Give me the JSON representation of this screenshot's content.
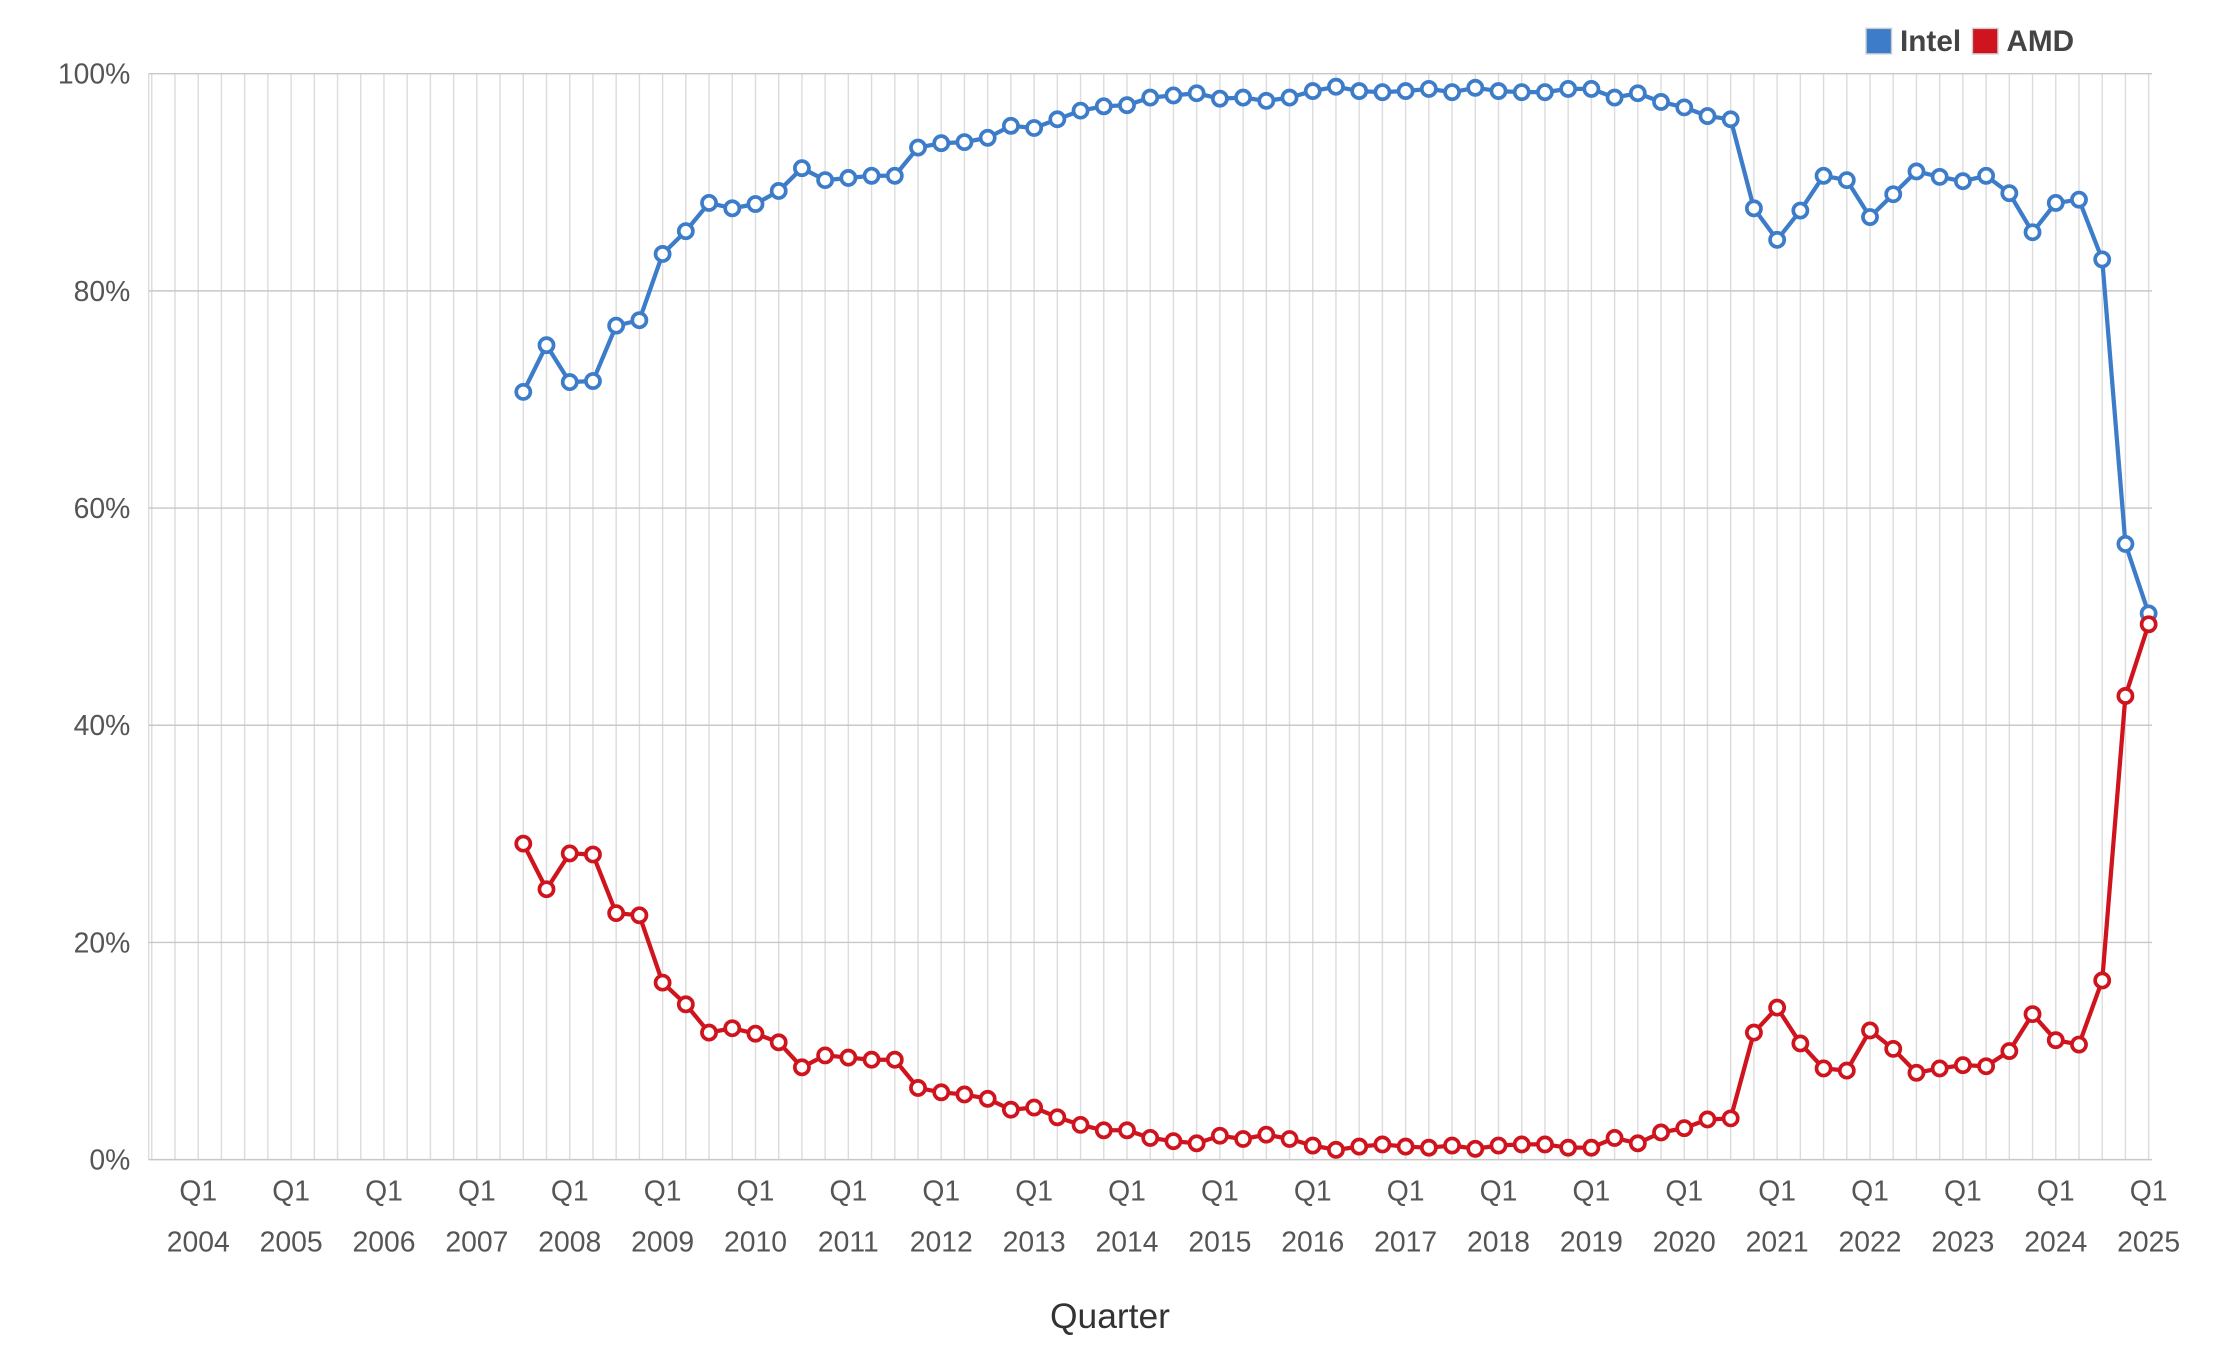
{
  "chart_data": {
    "type": "line",
    "x_label": "Quarter",
    "categories": [
      [
        "Q1",
        "2004"
      ],
      null,
      null,
      null,
      [
        "Q1",
        "2005"
      ],
      null,
      null,
      null,
      [
        "Q1",
        "2006"
      ],
      null,
      null,
      null,
      [
        "Q1",
        "2007"
      ],
      null,
      null,
      null,
      [
        "Q1",
        "2008"
      ],
      null,
      null,
      null,
      [
        "Q1",
        "2009"
      ],
      null,
      null,
      null,
      [
        "Q1",
        "2010"
      ],
      null,
      null,
      null,
      [
        "Q1",
        "2011"
      ],
      null,
      null,
      null,
      [
        "Q1",
        "2012"
      ],
      null,
      null,
      null,
      [
        "Q1",
        "2013"
      ],
      null,
      null,
      null,
      [
        "Q1",
        "2014"
      ],
      null,
      null,
      null,
      [
        "Q1",
        "2015"
      ],
      null,
      null,
      null,
      [
        "Q1",
        "2016"
      ],
      null,
      null,
      null,
      [
        "Q1",
        "2017"
      ],
      null,
      null,
      null,
      [
        "Q1",
        "2018"
      ],
      null,
      null,
      null,
      [
        "Q1",
        "2019"
      ],
      null,
      null,
      null,
      [
        "Q1",
        "2020"
      ],
      null,
      null,
      null,
      [
        "Q1",
        "2021"
      ],
      null,
      null,
      null,
      [
        "Q1",
        "2022"
      ],
      null,
      null,
      null,
      [
        "Q1",
        "2023"
      ],
      null,
      null,
      null,
      [
        "Q1",
        "2024"
      ],
      null,
      null,
      null,
      [
        "Q1",
        "2025"
      ]
    ],
    "series": [
      {
        "name": "Intel",
        "color": "#3d7cc9",
        "values": [
          null,
          null,
          null,
          null,
          null,
          null,
          null,
          null,
          null,
          null,
          null,
          null,
          null,
          null,
          70.7,
          75.0,
          71.6,
          71.7,
          76.8,
          77.3,
          83.4,
          85.5,
          88.1,
          87.6,
          88.0,
          89.2,
          91.3,
          90.2,
          90.4,
          90.6,
          90.6,
          93.2,
          93.6,
          93.7,
          94.1,
          95.2,
          95.0,
          95.8,
          96.6,
          97.0,
          97.1,
          97.8,
          98.0,
          98.2,
          97.7,
          97.8,
          97.5,
          97.8,
          98.4,
          98.8,
          98.4,
          98.3,
          98.4,
          98.6,
          98.3,
          98.7,
          98.4,
          98.3,
          98.3,
          98.6,
          98.6,
          97.8,
          98.2,
          97.4,
          96.9,
          96.1,
          95.8,
          87.6,
          84.7,
          87.4,
          90.6,
          90.2,
          86.8,
          88.9,
          91.0,
          90.5,
          90.1,
          90.6,
          89.0,
          85.4,
          88.1,
          88.4,
          82.9,
          56.7,
          50.3
        ]
      },
      {
        "name": "AMD",
        "color": "#d0141e",
        "values": [
          null,
          null,
          null,
          null,
          null,
          null,
          null,
          null,
          null,
          null,
          null,
          null,
          null,
          null,
          29.1,
          24.9,
          28.2,
          28.1,
          22.7,
          22.5,
          16.3,
          14.3,
          11.7,
          12.1,
          11.6,
          10.8,
          8.5,
          9.6,
          9.4,
          9.2,
          9.2,
          6.6,
          6.2,
          6.0,
          5.6,
          4.6,
          4.8,
          3.9,
          3.2,
          2.7,
          2.7,
          2.0,
          1.7,
          1.5,
          2.2,
          1.9,
          2.3,
          1.9,
          1.3,
          0.9,
          1.2,
          1.4,
          1.2,
          1.1,
          1.3,
          1.0,
          1.3,
          1.4,
          1.4,
          1.1,
          1.1,
          2.0,
          1.5,
          2.5,
          2.9,
          3.7,
          3.8,
          11.7,
          14.0,
          10.7,
          8.4,
          8.2,
          11.9,
          10.2,
          8.0,
          8.4,
          8.7,
          8.6,
          10.0,
          13.4,
          11.0,
          10.6,
          16.5,
          42.7,
          49.3
        ]
      }
    ],
    "ylim": [
      0,
      100
    ],
    "yticks": [
      {
        "value": 0,
        "label": "0%"
      },
      {
        "value": 20,
        "label": "20%"
      },
      {
        "value": 40,
        "label": "40%"
      },
      {
        "value": 60,
        "label": "60%"
      },
      {
        "value": 80,
        "label": "80%"
      },
      {
        "value": 100,
        "label": "100%"
      }
    ],
    "grid": true,
    "legend": "top-right"
  }
}
